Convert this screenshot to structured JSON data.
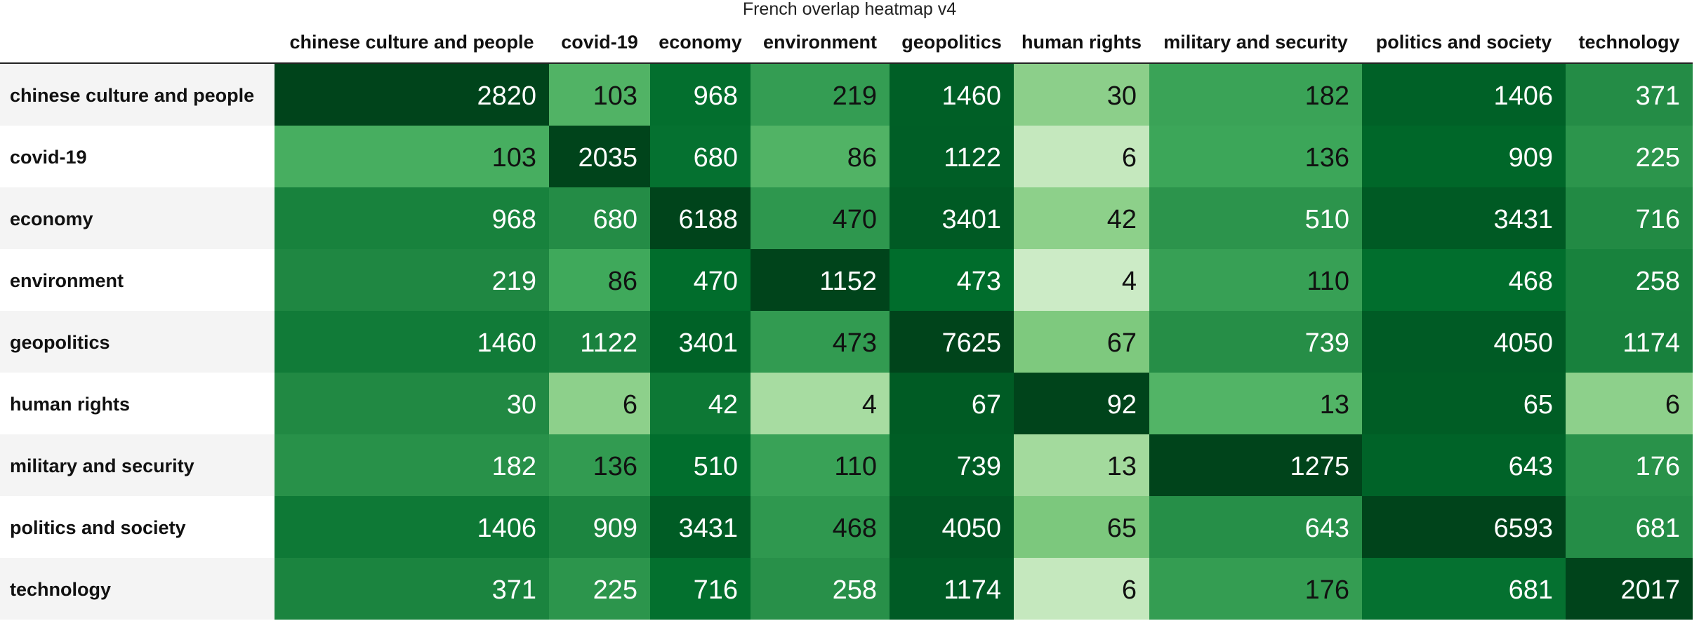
{
  "chart_data": {
    "type": "heatmap",
    "title": "French overlap heatmap v4",
    "xlabel": "",
    "ylabel": "",
    "colormap": "Greens",
    "row_header_colors": [
      "#f4f4f4",
      "#ffffff"
    ],
    "x_categories": [
      "chinese culture and people",
      "covid-19",
      "economy",
      "environment",
      "geopolitics",
      "human rights",
      "military and security",
      "politics and society",
      "technology"
    ],
    "y_categories": [
      "chinese culture and people",
      "covid-19",
      "economy",
      "environment",
      "geopolitics",
      "human rights",
      "military and security",
      "politics and society",
      "technology"
    ],
    "values": [
      [
        2820,
        103,
        968,
        219,
        1460,
        30,
        182,
        1406,
        371
      ],
      [
        103,
        2035,
        680,
        86,
        1122,
        6,
        136,
        909,
        225
      ],
      [
        968,
        680,
        6188,
        470,
        3401,
        42,
        510,
        3431,
        716
      ],
      [
        219,
        86,
        470,
        1152,
        473,
        4,
        110,
        468,
        258
      ],
      [
        1460,
        1122,
        3401,
        473,
        7625,
        67,
        739,
        4050,
        1174
      ],
      [
        30,
        6,
        42,
        4,
        67,
        92,
        13,
        65,
        6
      ],
      [
        182,
        136,
        510,
        110,
        739,
        13,
        1275,
        643,
        176
      ],
      [
        1406,
        909,
        3431,
        468,
        4050,
        65,
        643,
        6593,
        681
      ],
      [
        371,
        225,
        716,
        258,
        1174,
        6,
        176,
        681,
        2017
      ]
    ]
  }
}
